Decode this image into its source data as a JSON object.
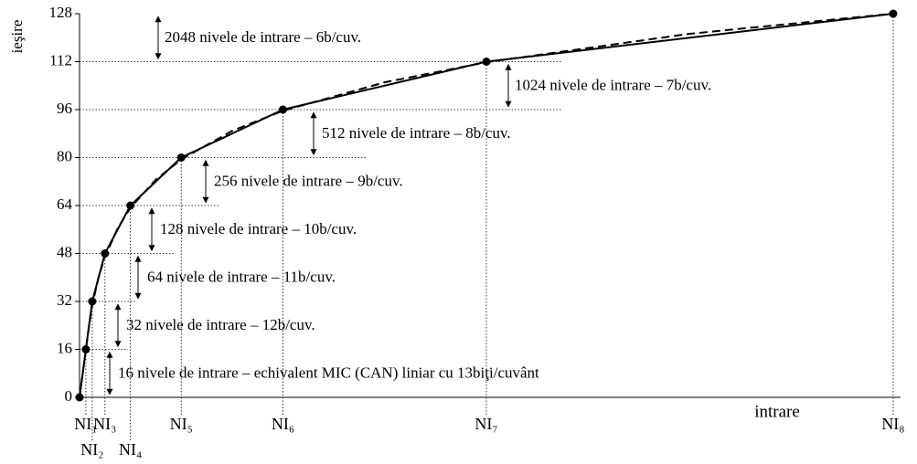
{
  "chart_data": {
    "type": "line",
    "y_label": "ieşire",
    "x_label": "intrare",
    "xlim": [
      0,
      4133
    ],
    "ylim": [
      0,
      128
    ],
    "yticks": [
      0,
      16,
      32,
      48,
      64,
      80,
      96,
      112,
      128
    ],
    "xticks": [
      {
        "value": 32,
        "label": "NI₁"
      },
      {
        "value": 64,
        "label": "NI₂"
      },
      {
        "value": 128,
        "label": "NI₃"
      },
      {
        "value": 256,
        "label": "NI₄"
      },
      {
        "value": 512,
        "label": "NI₅"
      },
      {
        "value": 1024,
        "label": "NI₆"
      },
      {
        "value": 2048,
        "label": "NI₇"
      },
      {
        "value": 4096,
        "label": "NI₈"
      }
    ],
    "series": [
      {
        "color": "#000000",
        "style": "solid",
        "markers": true,
        "x": [
          0,
          32,
          64,
          128,
          256,
          512,
          1024,
          2048,
          4096
        ],
        "values": [
          0,
          16,
          32,
          48,
          64,
          80,
          96,
          112,
          128
        ]
      },
      {
        "color": "#000000",
        "style": "dashed",
        "markers": false,
        "x": [
          0,
          16,
          32,
          46.8,
          64,
          96,
          128,
          192,
          256,
          384,
          512,
          768,
          1024,
          1536,
          2048,
          3072,
          4096
        ],
        "values": [
          0,
          8,
          16,
          23.4,
          30.7,
          40.2,
          46.9,
          56.4,
          63.2,
          72.6,
          79.4,
          88.9,
          95.6,
          105.1,
          111.8,
          121.3,
          128
        ]
      }
    ],
    "annotations": [
      "16 nivele de intrare – echivalent MIC (CAN) liniar cu 13biţi/cuvânt",
      "32 nivele de intrare – 12b/cuv.",
      "64 nivele de intrare – 11b/cuv.",
      "128 nivele de intrare – 10b/cuv.",
      "256 nivele de intrare – 9b/cuv.",
      "512 nivele de intrare – 8b/cuv.",
      "1024 nivele de intrare – 7b/cuv.",
      "2048 nivele de intrare – 6b/cuv."
    ]
  }
}
